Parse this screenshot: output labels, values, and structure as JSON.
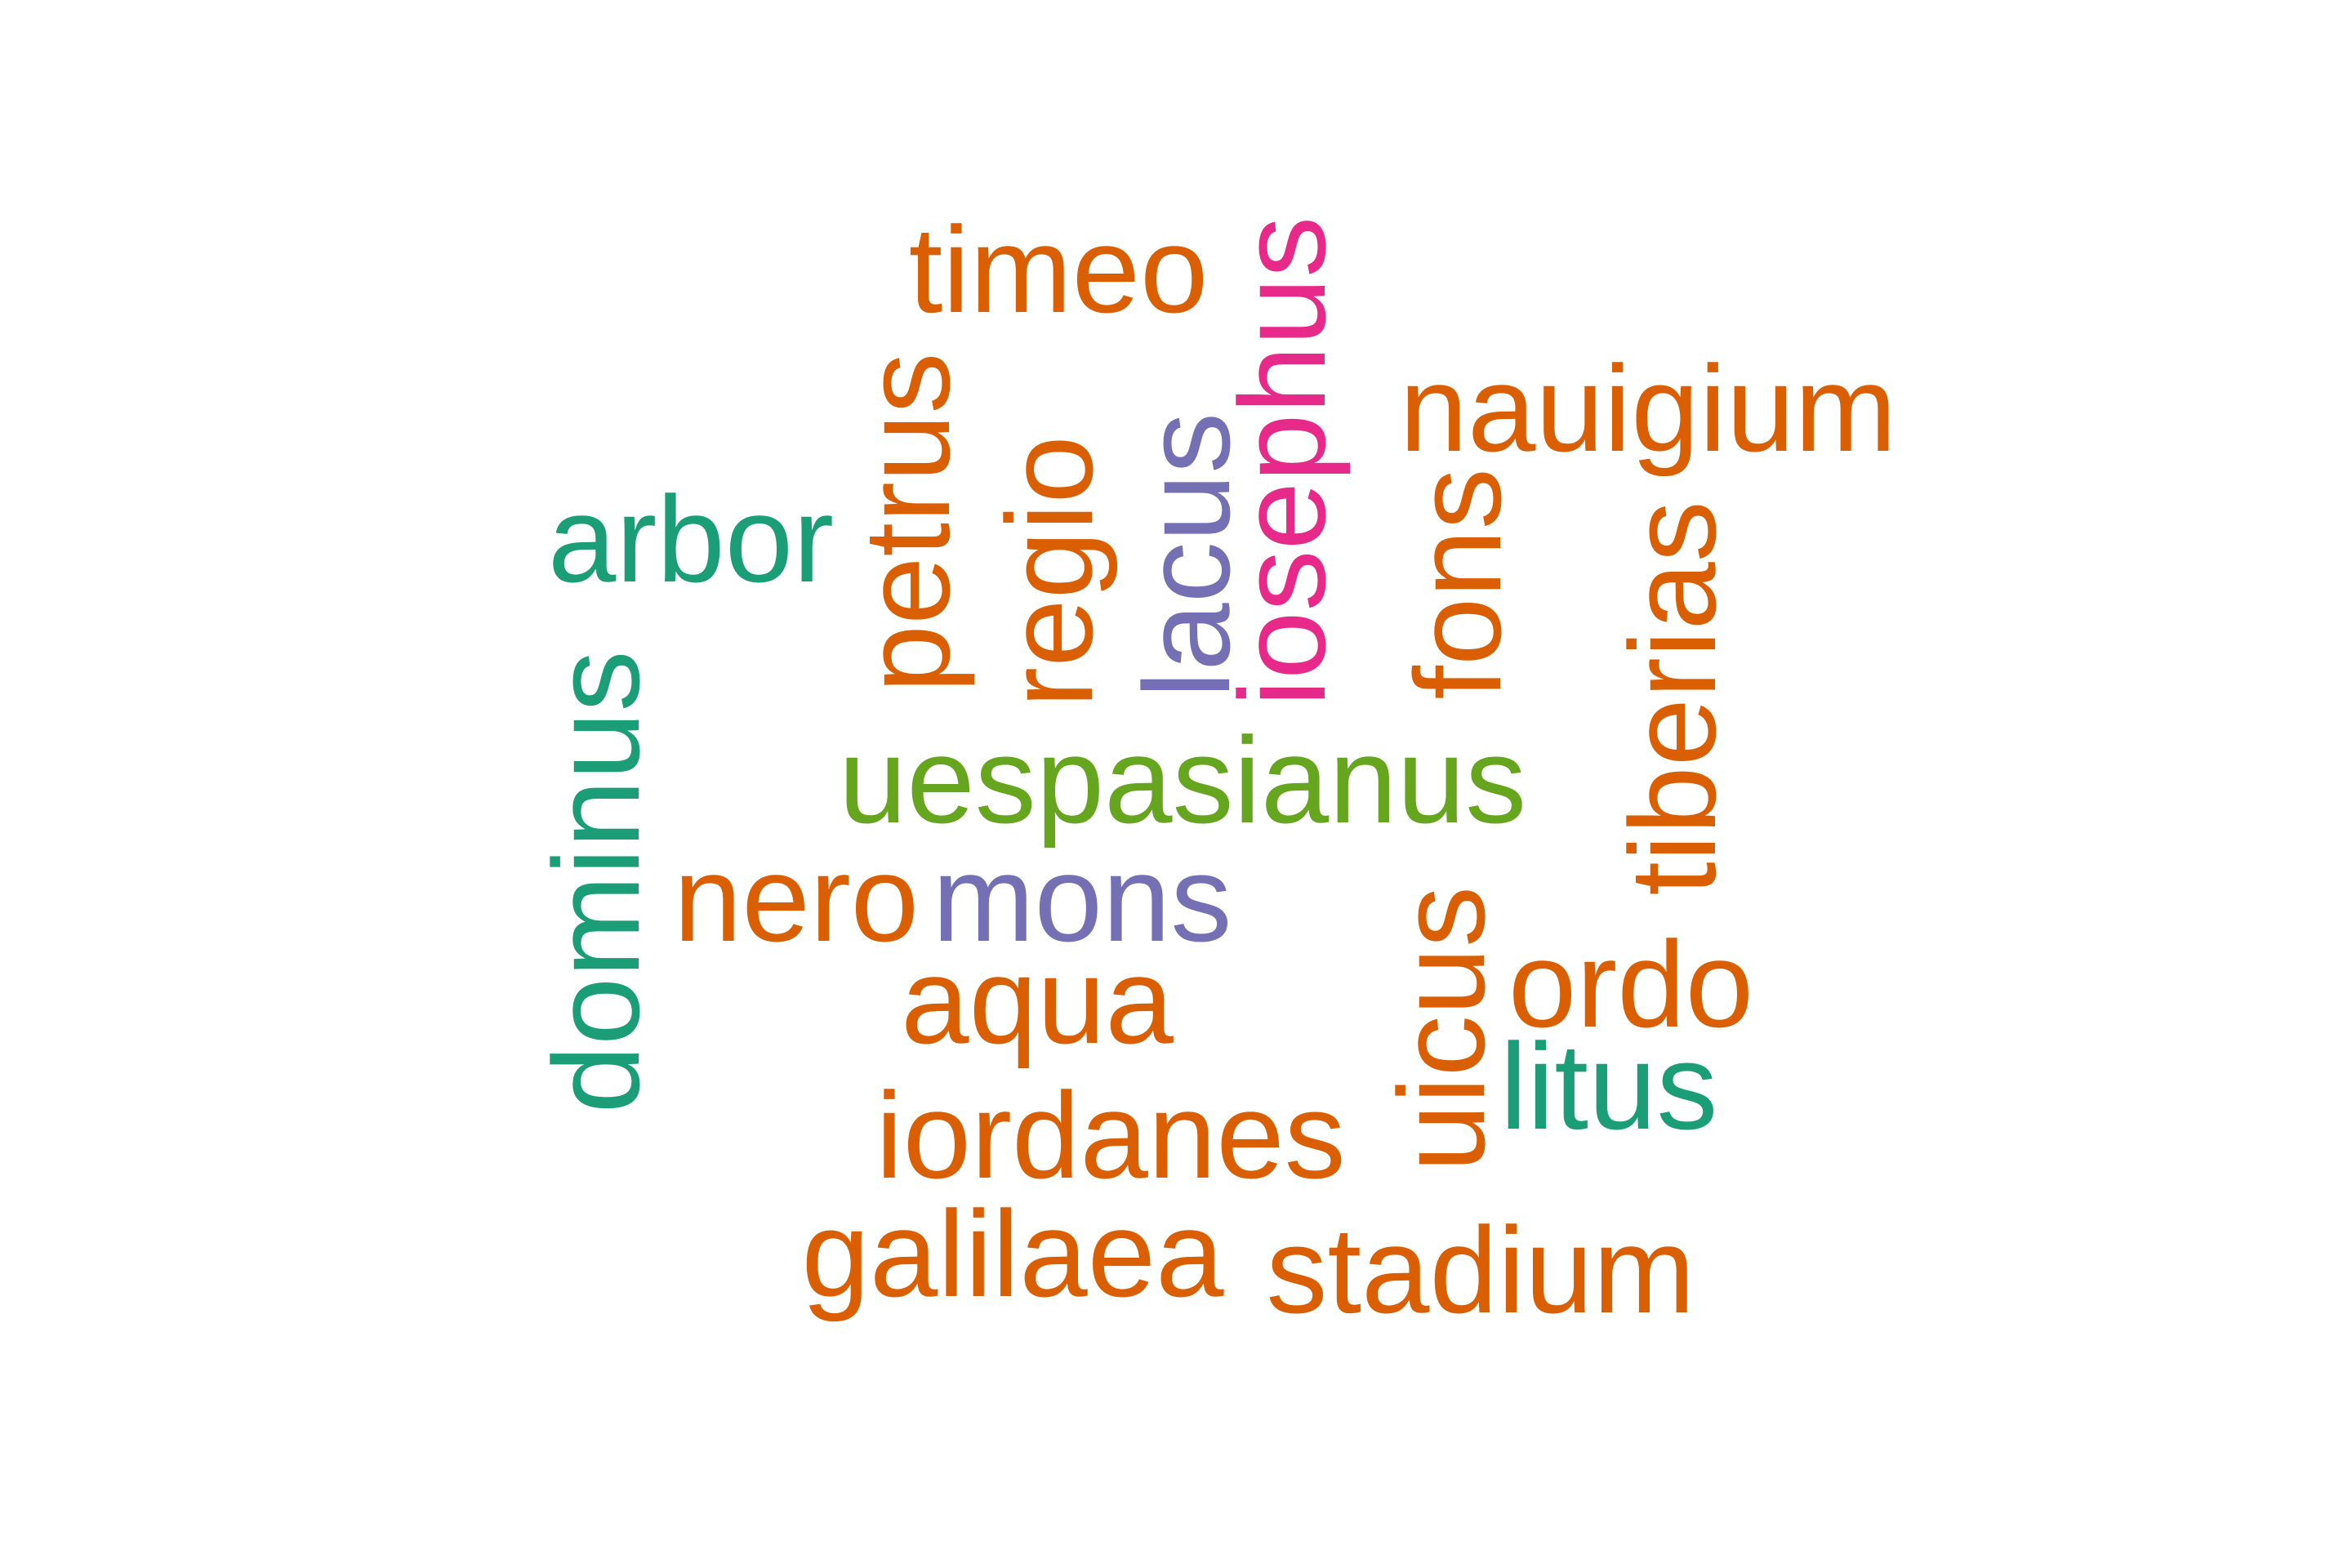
{
  "palette": {
    "orange": "#d95f02",
    "teal": "#1b9e77",
    "purple": "#7570b3",
    "magenta": "#e7298a",
    "green": "#66a61e"
  },
  "words": [
    {
      "id": "timeo",
      "text": "timeo",
      "color": "#d95f02",
      "orientation": "horizontal"
    },
    {
      "id": "iosephus",
      "text": "iosephus",
      "color": "#e7298a",
      "orientation": "vertical"
    },
    {
      "id": "nauigium",
      "text": "nauigium",
      "color": "#d95f02",
      "orientation": "horizontal"
    },
    {
      "id": "petrus",
      "text": "petrus",
      "color": "#d95f02",
      "orientation": "vertical"
    },
    {
      "id": "regio",
      "text": "regio",
      "color": "#d95f02",
      "orientation": "vertical"
    },
    {
      "id": "lacus",
      "text": "lacus",
      "color": "#7570b3",
      "orientation": "vertical"
    },
    {
      "id": "arbor",
      "text": "arbor",
      "color": "#1b9e77",
      "orientation": "horizontal"
    },
    {
      "id": "fons",
      "text": "fons",
      "color": "#d95f02",
      "orientation": "vertical"
    },
    {
      "id": "tiberias",
      "text": "tiberias",
      "color": "#d95f02",
      "orientation": "vertical"
    },
    {
      "id": "dominus",
      "text": "dominus",
      "color": "#1b9e77",
      "orientation": "vertical"
    },
    {
      "id": "uespasianus",
      "text": "uespasianus",
      "color": "#66a61e",
      "orientation": "horizontal"
    },
    {
      "id": "nero",
      "text": "nero",
      "color": "#d95f02",
      "orientation": "horizontal"
    },
    {
      "id": "mons",
      "text": "mons",
      "color": "#7570b3",
      "orientation": "horizontal"
    },
    {
      "id": "aqua",
      "text": "aqua",
      "color": "#d95f02",
      "orientation": "horizontal"
    },
    {
      "id": "uicus",
      "text": "uicus",
      "color": "#d95f02",
      "orientation": "vertical"
    },
    {
      "id": "ordo",
      "text": "ordo",
      "color": "#d95f02",
      "orientation": "horizontal"
    },
    {
      "id": "litus",
      "text": "litus",
      "color": "#1b9e77",
      "orientation": "horizontal"
    },
    {
      "id": "iordanes",
      "text": "iordanes",
      "color": "#d95f02",
      "orientation": "horizontal"
    },
    {
      "id": "galilaea",
      "text": "galilaea",
      "color": "#d95f02",
      "orientation": "horizontal"
    },
    {
      "id": "stadium",
      "text": "stadium",
      "color": "#d95f02",
      "orientation": "horizontal"
    }
  ]
}
